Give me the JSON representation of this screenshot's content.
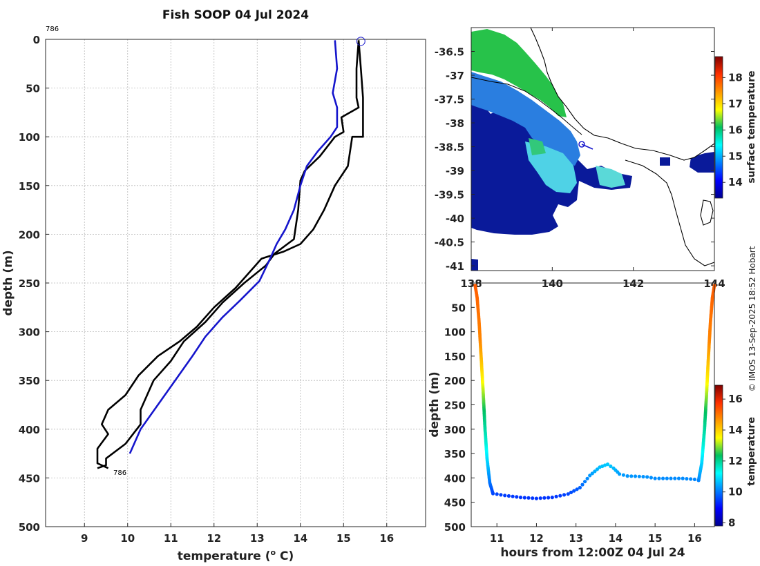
{
  "chart_data": [
    {
      "type": "line",
      "title": "Fish SOOP 04 Jul 2024",
      "xlabel": "temperature (",
      "xlabel_sup": "o",
      "xlabel_end": " C)",
      "ylabel": "depth (m)",
      "xlim": [
        8.1,
        16.9
      ],
      "ylim": [
        0,
        500
      ],
      "y_reversed": true,
      "xticks": [
        9,
        10,
        11,
        12,
        13,
        14,
        15,
        16
      ],
      "yticks": [
        0,
        50,
        100,
        150,
        200,
        250,
        300,
        350,
        400,
        450,
        500
      ],
      "grid": true,
      "profile_id_top": "786",
      "profile_id_bottom": "786",
      "surface_marker": {
        "x": 15.4,
        "y": 2
      },
      "series": [
        {
          "name": "profile-black-1",
          "color": "#000000",
          "points": [
            [
              15.35,
              1
            ],
            [
              15.4,
              30
            ],
            [
              15.45,
              60
            ],
            [
              15.45,
              100
            ],
            [
              15.2,
              100
            ],
            [
              15.1,
              130
            ],
            [
              14.8,
              150
            ],
            [
              14.55,
              175
            ],
            [
              14.3,
              195
            ],
            [
              14.0,
              210
            ],
            [
              13.6,
              218
            ],
            [
              13.1,
              225
            ],
            [
              12.8,
              240
            ],
            [
              12.5,
              255
            ],
            [
              12.0,
              275
            ],
            [
              11.6,
              295
            ],
            [
              11.2,
              310
            ],
            [
              10.7,
              325
            ],
            [
              10.25,
              345
            ],
            [
              9.95,
              365
            ],
            [
              9.55,
              380
            ],
            [
              9.4,
              395
            ],
            [
              9.55,
              405
            ],
            [
              9.3,
              420
            ],
            [
              9.3,
              435
            ],
            [
              9.55,
              440
            ]
          ]
        },
        {
          "name": "profile-black-2",
          "color": "#000000",
          "points": [
            [
              15.35,
              1
            ],
            [
              15.3,
              30
            ],
            [
              15.3,
              60
            ],
            [
              15.35,
              70
            ],
            [
              15.15,
              75
            ],
            [
              14.95,
              80
            ],
            [
              15.0,
              95
            ],
            [
              14.8,
              100
            ],
            [
              14.45,
              120
            ],
            [
              14.1,
              135
            ],
            [
              14.0,
              145
            ],
            [
              13.95,
              175
            ],
            [
              13.85,
              205
            ],
            [
              13.4,
              220
            ],
            [
              13.2,
              232
            ],
            [
              12.7,
              250
            ],
            [
              12.2,
              270
            ],
            [
              11.8,
              290
            ],
            [
              11.3,
              310
            ],
            [
              11.0,
              330
            ],
            [
              10.6,
              350
            ],
            [
              10.3,
              380
            ],
            [
              10.3,
              395
            ],
            [
              9.95,
              415
            ],
            [
              9.5,
              430
            ],
            [
              9.5,
              437
            ],
            [
              9.3,
              440
            ]
          ]
        },
        {
          "name": "profile-blue",
          "color": "#1515cc",
          "points": [
            [
              14.8,
              1
            ],
            [
              14.85,
              30
            ],
            [
              14.75,
              55
            ],
            [
              14.85,
              70
            ],
            [
              14.85,
              90
            ],
            [
              14.7,
              100
            ],
            [
              14.4,
              115
            ],
            [
              14.15,
              130
            ],
            [
              14.0,
              150
            ],
            [
              13.85,
              175
            ],
            [
              13.65,
              195
            ],
            [
              13.45,
              210
            ],
            [
              13.3,
              225
            ],
            [
              13.05,
              248
            ],
            [
              12.6,
              268
            ],
            [
              12.2,
              285
            ],
            [
              11.8,
              305
            ],
            [
              11.5,
              325
            ],
            [
              11.1,
              350
            ],
            [
              10.7,
              375
            ],
            [
              10.3,
              400
            ],
            [
              10.05,
              425
            ]
          ]
        }
      ]
    },
    {
      "type": "heatmap",
      "subtype": "map",
      "xticks": [
        138,
        140,
        142,
        144
      ],
      "yticks": [
        -36.5,
        -37,
        -37.5,
        -38,
        -38.5,
        -39,
        -39.5,
        -40,
        -40.5,
        -41
      ],
      "xlim": [
        138,
        144
      ],
      "ylim": [
        -41.1,
        -36.0
      ],
      "colorbar": {
        "label": "surface temperature",
        "ticks": [
          14,
          15,
          16,
          17,
          18
        ],
        "range": [
          13.4,
          18.8
        ]
      }
    },
    {
      "type": "scatter",
      "xlabel": "hours from 12:00Z 04 Jul 24",
      "ylabel": "depth (m)",
      "xlim": [
        10.35,
        16.5
      ],
      "ylim": [
        0,
        500
      ],
      "y_reversed": true,
      "xticks": [
        11,
        12,
        13,
        14,
        15,
        16
      ],
      "yticks": [
        50,
        100,
        150,
        200,
        250,
        300,
        350,
        400,
        450,
        500
      ],
      "colorbar": {
        "label": "temperature",
        "ticks": [
          8,
          10,
          12,
          14,
          16
        ],
        "range": [
          7.8,
          16.9
        ]
      },
      "downcast": [
        [
          10.45,
          5
        ],
        [
          10.5,
          30
        ],
        [
          10.55,
          80
        ],
        [
          10.6,
          150
        ],
        [
          10.65,
          220
        ],
        [
          10.7,
          300
        ],
        [
          10.75,
          360
        ],
        [
          10.82,
          410
        ],
        [
          10.9,
          432
        ]
      ],
      "track": [
        [
          10.9,
          432
        ],
        [
          11.2,
          436
        ],
        [
          11.6,
          440
        ],
        [
          12.0,
          442
        ],
        [
          12.4,
          440
        ],
        [
          12.8,
          433
        ],
        [
          13.1,
          420
        ],
        [
          13.35,
          395
        ],
        [
          13.6,
          378
        ],
        [
          13.8,
          372
        ],
        [
          13.95,
          380
        ],
        [
          14.1,
          392
        ],
        [
          14.3,
          396
        ],
        [
          14.6,
          397
        ],
        [
          14.8,
          398
        ],
        [
          15.0,
          401
        ],
        [
          15.3,
          401
        ],
        [
          15.7,
          401
        ],
        [
          16.0,
          403
        ],
        [
          16.1,
          405
        ]
      ],
      "upcast": [
        [
          16.1,
          405
        ],
        [
          16.18,
          370
        ],
        [
          16.25,
          300
        ],
        [
          16.3,
          230
        ],
        [
          16.35,
          150
        ],
        [
          16.4,
          80
        ],
        [
          16.45,
          30
        ],
        [
          16.5,
          5
        ]
      ],
      "temperature_stops": [
        [
          0,
          15.3
        ],
        [
          50,
          15.1
        ],
        [
          120,
          14.8
        ],
        [
          200,
          13.6
        ],
        [
          260,
          12.4
        ],
        [
          330,
          11.5
        ],
        [
          380,
          10.6
        ],
        [
          440,
          9.4
        ]
      ]
    }
  ],
  "credit": "© IMOS 13-Sep-2025 18:52 Hobart"
}
